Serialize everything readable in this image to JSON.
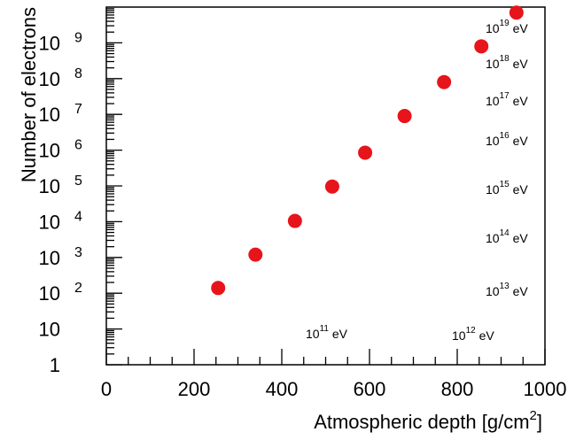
{
  "chart_data": {
    "type": "line",
    "title": "",
    "xlabel": "Atmospheric depth [g/cm²]",
    "xlabel_main": "Atmospheric depth [g/cm",
    "xlabel_sup": "2",
    "xlabel_end": "]",
    "ylabel": "Number of electrons",
    "xlim": [
      0,
      1000
    ],
    "ylim": [
      1,
      10000000000.0
    ],
    "yscale": "log",
    "x_ticks": [
      "0",
      "200",
      "400",
      "600",
      "800",
      "1000"
    ],
    "y_ticks": [
      {
        "base": "1",
        "exp": ""
      },
      {
        "base": "10",
        "exp": ""
      },
      {
        "base": "10",
        "exp": "2"
      },
      {
        "base": "10",
        "exp": "3"
      },
      {
        "base": "10",
        "exp": "4"
      },
      {
        "base": "10",
        "exp": "5"
      },
      {
        "base": "10",
        "exp": "6"
      },
      {
        "base": "10",
        "exp": "7"
      },
      {
        "base": "10",
        "exp": "8"
      },
      {
        "base": "10",
        "exp": "9"
      }
    ],
    "grid": false,
    "line_color": "#1f5aa6",
    "marker_color": "#e8141b",
    "series": [
      {
        "label_base": "10",
        "label_exp": "11",
        "label_unit": " eV",
        "xmax": 255,
        "nmax": 140
      },
      {
        "label_base": "10",
        "label_exp": "12",
        "label_unit": " eV",
        "xmax": 340,
        "nmax": 1200
      },
      {
        "label_base": "10",
        "label_exp": "13",
        "label_unit": " eV",
        "xmax": 430,
        "nmax": 10500
      },
      {
        "label_base": "10",
        "label_exp": "14",
        "label_unit": " eV",
        "xmax": 515,
        "nmax": 96000
      },
      {
        "label_base": "10",
        "label_exp": "15",
        "label_unit": " eV",
        "xmax": 590,
        "nmax": 850000
      },
      {
        "label_base": "10",
        "label_exp": "16",
        "label_unit": " eV",
        "xmax": 680,
        "nmax": 9000000
      },
      {
        "label_base": "10",
        "label_exp": "17",
        "label_unit": " eV",
        "xmax": 770,
        "nmax": 80000000
      },
      {
        "label_base": "10",
        "label_exp": "18",
        "label_unit": " eV",
        "xmax": 855,
        "nmax": 800000000
      },
      {
        "label_base": "10",
        "label_exp": "19",
        "label_unit": " eV",
        "xmax": 935,
        "nmax": 7000000000
      }
    ]
  }
}
